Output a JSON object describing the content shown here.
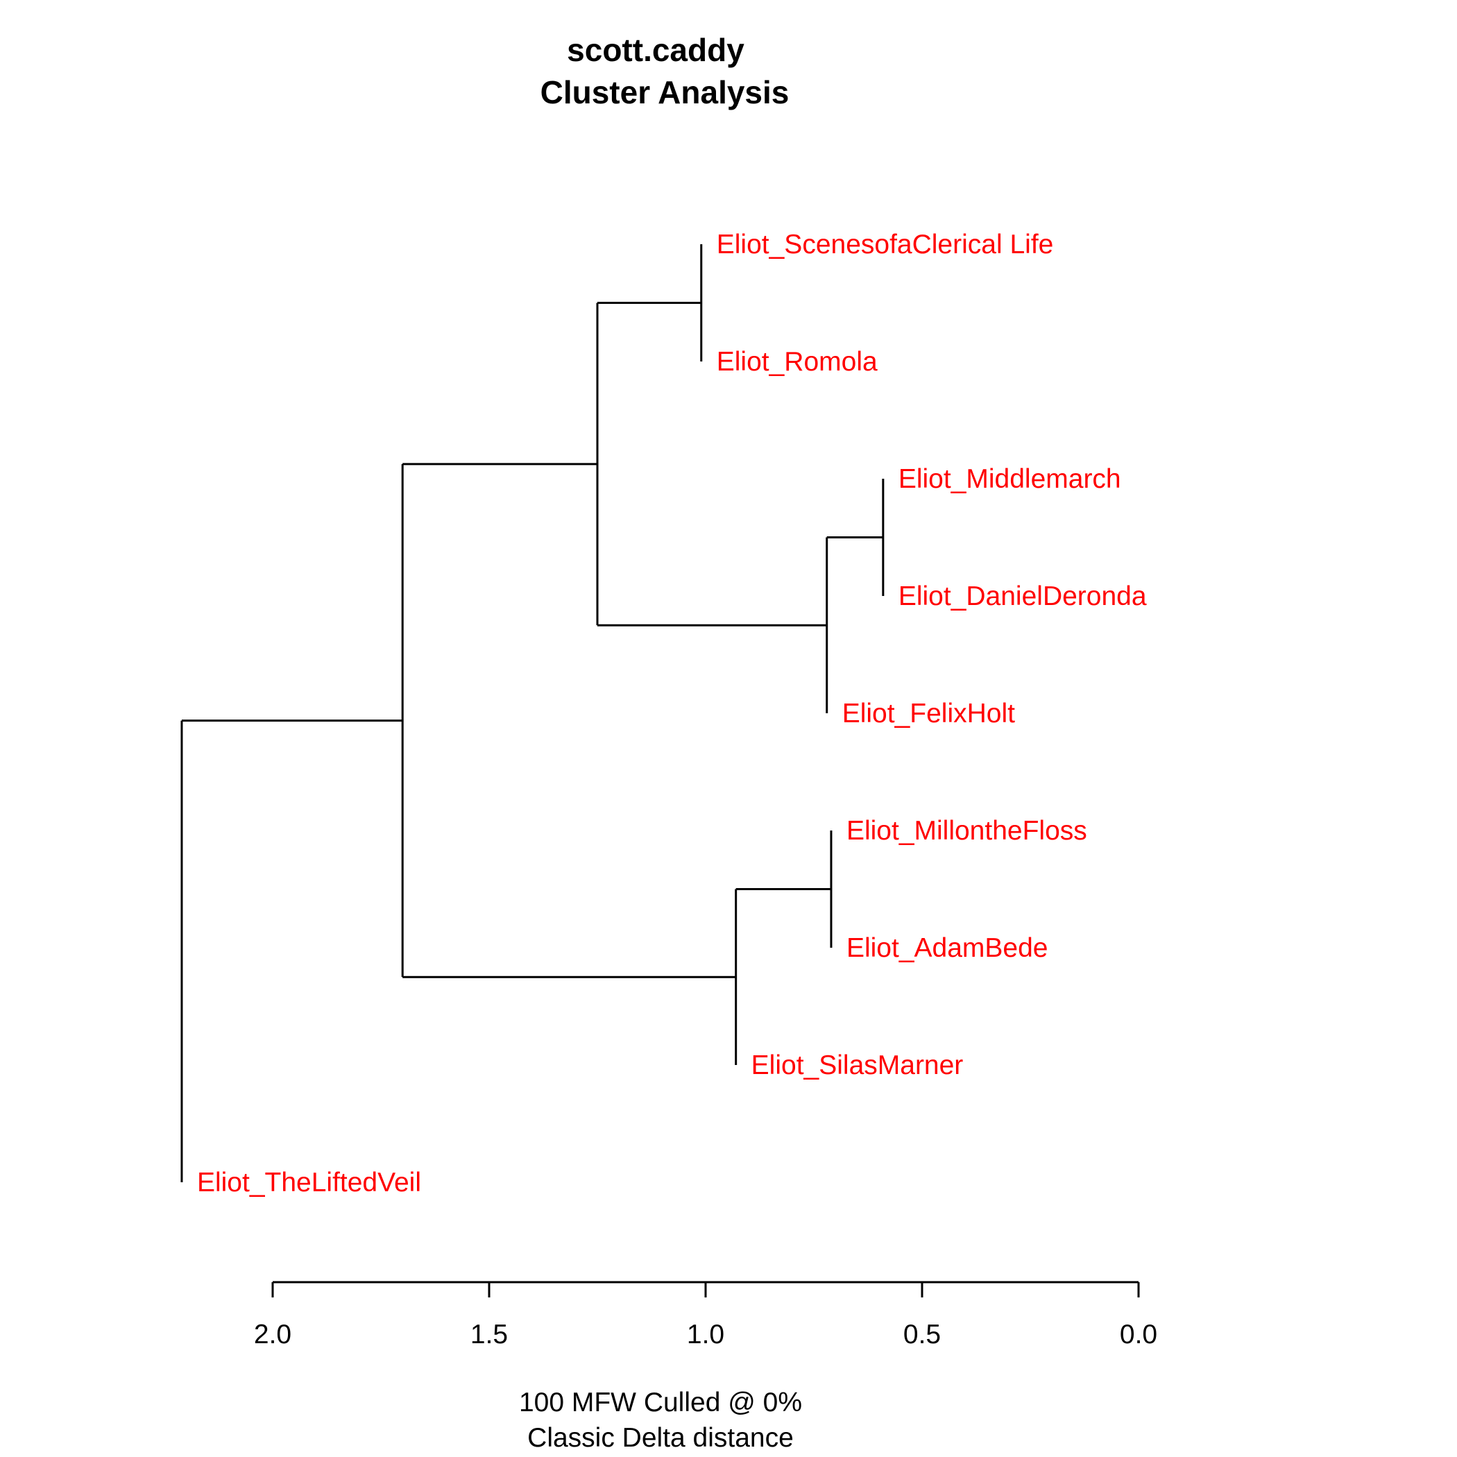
{
  "chart_data": {
    "type": "dendrogram",
    "title": [
      "scott.caddy",
      "Cluster Analysis"
    ],
    "xlabel": [
      "100 MFW  Culled @ 0%",
      "Classic Delta distance"
    ],
    "xlim": [
      2.0,
      0.0
    ],
    "ticks": [
      2.0,
      1.5,
      1.0,
      0.5,
      0.0
    ],
    "tick_labels": [
      "2.0",
      "1.5",
      "1.0",
      "0.5",
      "0.0"
    ],
    "leaf_color": "#ff0000",
    "leaves": [
      "Eliot_ScenesofaClerical Life",
      "Eliot_Romola",
      "Eliot_Middlemarch",
      "Eliot_DanielDeronda",
      "Eliot_FelixHolt",
      "Eliot_MillontheFloss",
      "Eliot_AdamBede",
      "Eliot_SilasMarner",
      "Eliot_TheLiftedVeil"
    ],
    "leaf_heights": [
      1.01,
      1.01,
      0.59,
      0.59,
      0.72,
      0.71,
      0.71,
      0.93,
      2.21
    ],
    "merges": [
      {
        "left": "L0",
        "right": "L1",
        "height": 1.01
      },
      {
        "left": "L2",
        "right": "L3",
        "height": 0.59
      },
      {
        "left": "M1",
        "right": "L4",
        "height": 0.72
      },
      {
        "left": "M0",
        "right": "M2",
        "height": 1.25
      },
      {
        "left": "L5",
        "right": "L6",
        "height": 0.71
      },
      {
        "left": "M4",
        "right": "L7",
        "height": 0.93
      },
      {
        "left": "M3",
        "right": "M5",
        "height": 1.7
      },
      {
        "left": "M6",
        "right": "L8",
        "height": 2.21
      }
    ]
  }
}
